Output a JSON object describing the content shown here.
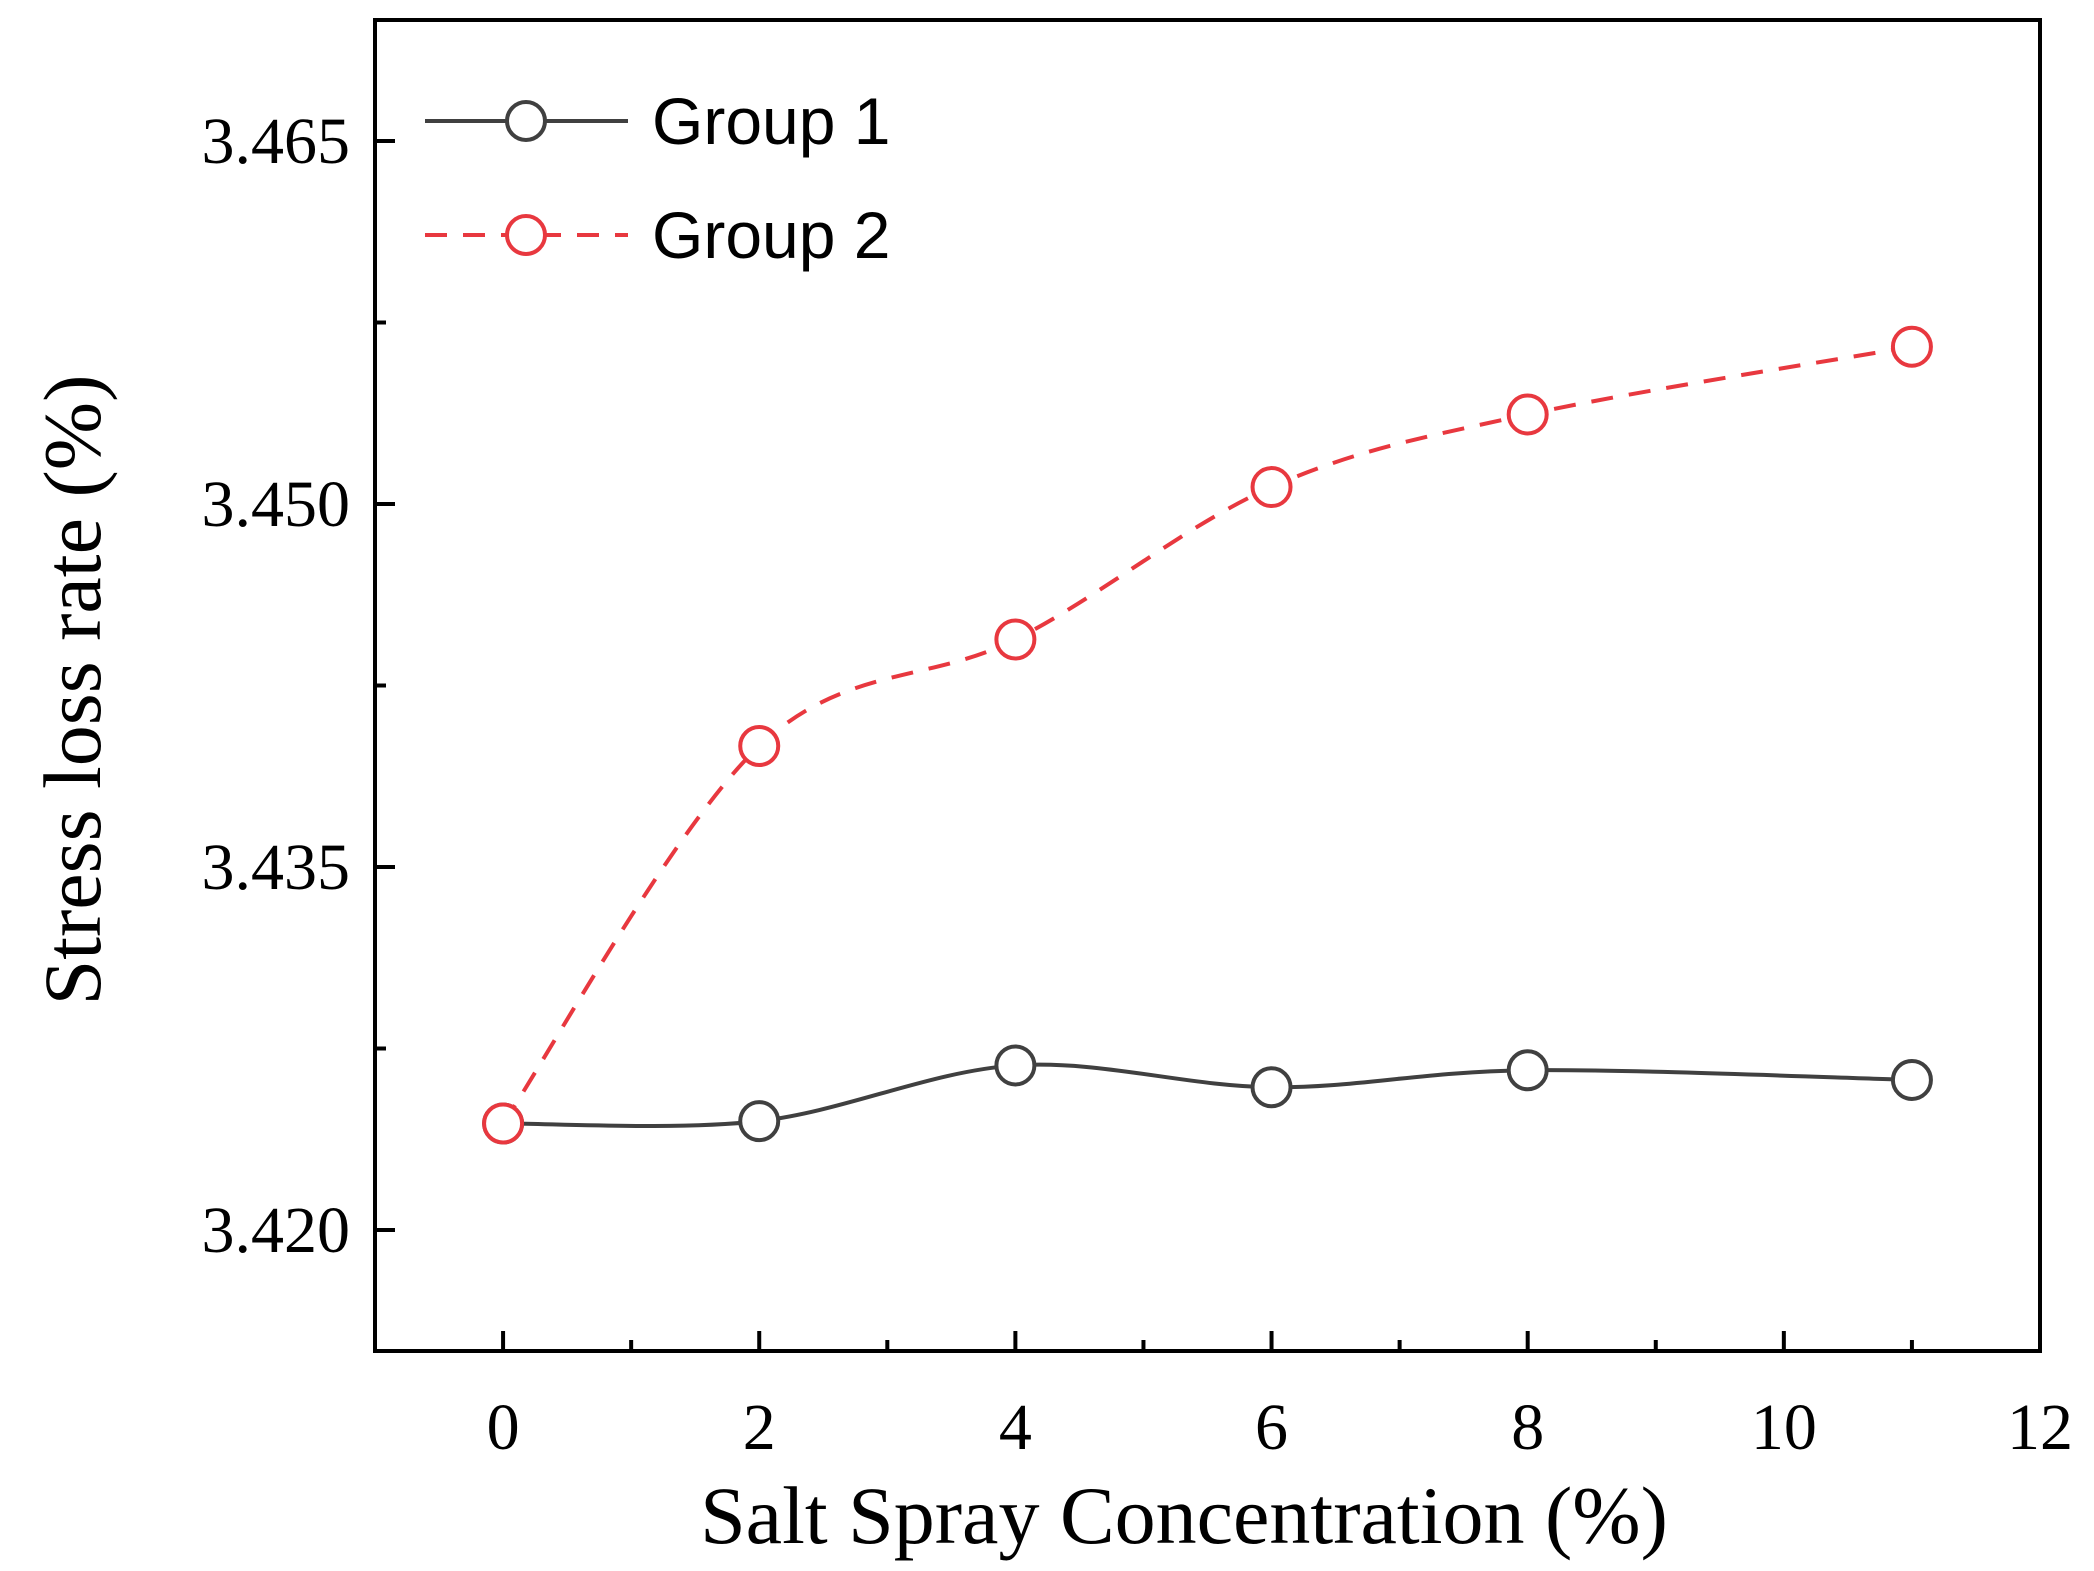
{
  "chart_data": {
    "type": "line",
    "title": "",
    "xlabel": "Salt Spray Concentration (%)",
    "ylabel": "Stress loss rate (%)",
    "xlim": [
      -1,
      12
    ],
    "ylim": [
      3.415,
      3.47
    ],
    "xticks": [
      0,
      2,
      4,
      6,
      8,
      10,
      12
    ],
    "xtick_labels": [
      "0",
      "2",
      "4",
      "6",
      "8",
      "10",
      "12"
    ],
    "yticks": [
      3.42,
      3.435,
      3.45,
      3.465
    ],
    "ytick_labels": [
      "3.420",
      "3.435",
      "3.450",
      "3.465"
    ],
    "grid": false,
    "legend_position": "top-left",
    "x": [
      0,
      2,
      4,
      6,
      8,
      11
    ],
    "series": [
      {
        "name": "Group 1",
        "values": [
          3.4244,
          3.4245,
          3.4268,
          3.4259,
          3.4266,
          3.4262
        ],
        "color": "#404040",
        "line_style": "solid",
        "marker": "open-circle"
      },
      {
        "name": "Group 2",
        "values": [
          3.4244,
          3.44,
          3.4444,
          3.4507,
          3.4537,
          3.4565
        ],
        "color": "#e8383f",
        "line_style": "dashed",
        "marker": "open-circle"
      }
    ]
  }
}
